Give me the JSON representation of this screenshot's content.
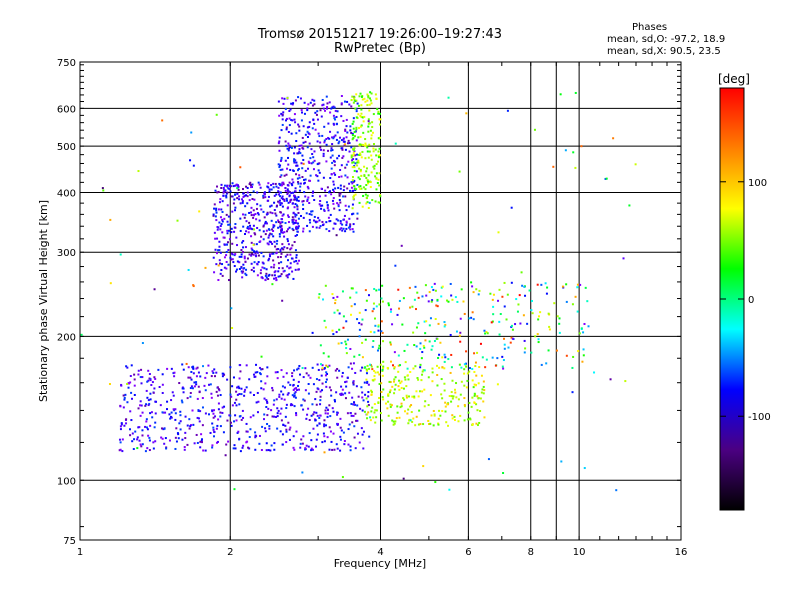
{
  "header": {
    "title_line1": "Tromsø 20151217 19:26:00–19:27:43",
    "title_line2": "RwPretec (Bp)"
  },
  "phase_box": {
    "heading": "Phases",
    "line_o": "mean, sd,O: -97.2, 18.9",
    "line_x": "mean, sd,X:  90.5, 23.5"
  },
  "colorbar": {
    "label": "[deg]",
    "range": [
      -180,
      180
    ],
    "ticks": [
      {
        "value": 100,
        "label": "100"
      },
      {
        "value": 0,
        "label": "0"
      },
      {
        "value": -100,
        "label": "-100"
      }
    ],
    "stops": [
      "#000000",
      "#4b0082",
      "#0000ff",
      "#00ffff",
      "#00ff00",
      "#ffff00",
      "#ff7f00",
      "#ff0000"
    ]
  },
  "chart_data": {
    "type": "scatter",
    "title": "Tromsø 20151217 19:26:00–19:27:43",
    "subtitle": "RwPretec (Bp)",
    "xlabel": "Frequency [MHz]",
    "ylabel": "Stationary phase Virtual Height [km]",
    "xscale": "log",
    "yscale": "log",
    "xlim": [
      1,
      16
    ],
    "ylim": [
      75,
      750
    ],
    "x_ticks": [
      1,
      2,
      4,
      6,
      8,
      10,
      16
    ],
    "x_tick_labels": [
      "1",
      "2",
      "4",
      "6",
      "8",
      "10",
      "16"
    ],
    "y_ticks": [
      75,
      100,
      200,
      300,
      400,
      500,
      600,
      750
    ],
    "y_tick_labels": [
      "75",
      "100",
      "200",
      "300",
      "400",
      "500",
      "600",
      "750"
    ],
    "grid": true,
    "color_variable": "phase [deg]",
    "clusters": [
      {
        "kind": "O-mode E/F1 trace",
        "phase_deg": -110,
        "x_range": [
          1.2,
          3.8
        ],
        "y_range": [
          115,
          175
        ],
        "n": 700
      },
      {
        "kind": "O-mode F2 cusp",
        "phase_deg": -115,
        "x_range": [
          1.85,
          2.75
        ],
        "y_range": [
          262,
          420
        ],
        "n": 520
      },
      {
        "kind": "O-mode F2 upper",
        "phase_deg": -110,
        "x_range": [
          2.5,
          3.6
        ],
        "y_range": [
          330,
          640
        ],
        "n": 520
      },
      {
        "kind": "X-mode F2 upper",
        "phase_deg": 80,
        "x_range": [
          3.5,
          4.0
        ],
        "y_range": [
          370,
          650
        ],
        "n": 200
      },
      {
        "kind": "X-mode E/F1 trace",
        "phase_deg": 95,
        "x_range": [
          3.7,
          6.5
        ],
        "y_range": [
          130,
          175
        ],
        "n": 260
      },
      {
        "kind": "mixed F1 region",
        "phase_deg": 20,
        "x_range": [
          3.0,
          10.5
        ],
        "y_range": [
          170,
          260
        ],
        "n": 330
      },
      {
        "kind": "scattered noise",
        "phase_deg": 0,
        "x_range": [
          1.0,
          13.0
        ],
        "y_range": [
          95,
          650
        ],
        "n": 110
      }
    ]
  }
}
